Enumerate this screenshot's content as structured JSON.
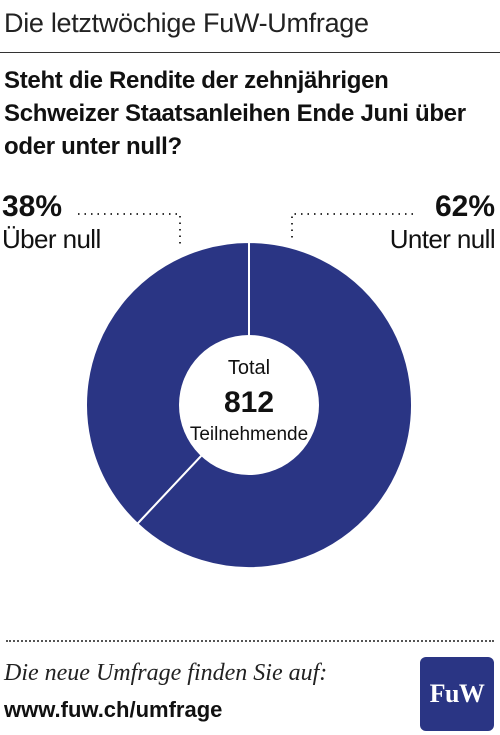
{
  "header": {
    "title": "Die letztwöchige FuW-Umfrage"
  },
  "question": "Steht die Rendite der zehnjährigen Schweizer Staatsanleihen Ende Juni über oder unter null?",
  "chart_data": {
    "type": "pie",
    "donut": true,
    "categories": [
      "Über null",
      "Unter null"
    ],
    "values": [
      38,
      62
    ],
    "value_labels": [
      "38%",
      "62%"
    ],
    "center": {
      "label_top": "Total",
      "value": "812",
      "label_bottom": "Teilnehmende"
    },
    "colors": {
      "slice": "#2a3584",
      "separator": "#ffffff"
    }
  },
  "footer": {
    "text": "Die neue Umfrage finden Sie auf:",
    "url": "www.fuw.ch/umfrage",
    "logo": "FuW"
  }
}
